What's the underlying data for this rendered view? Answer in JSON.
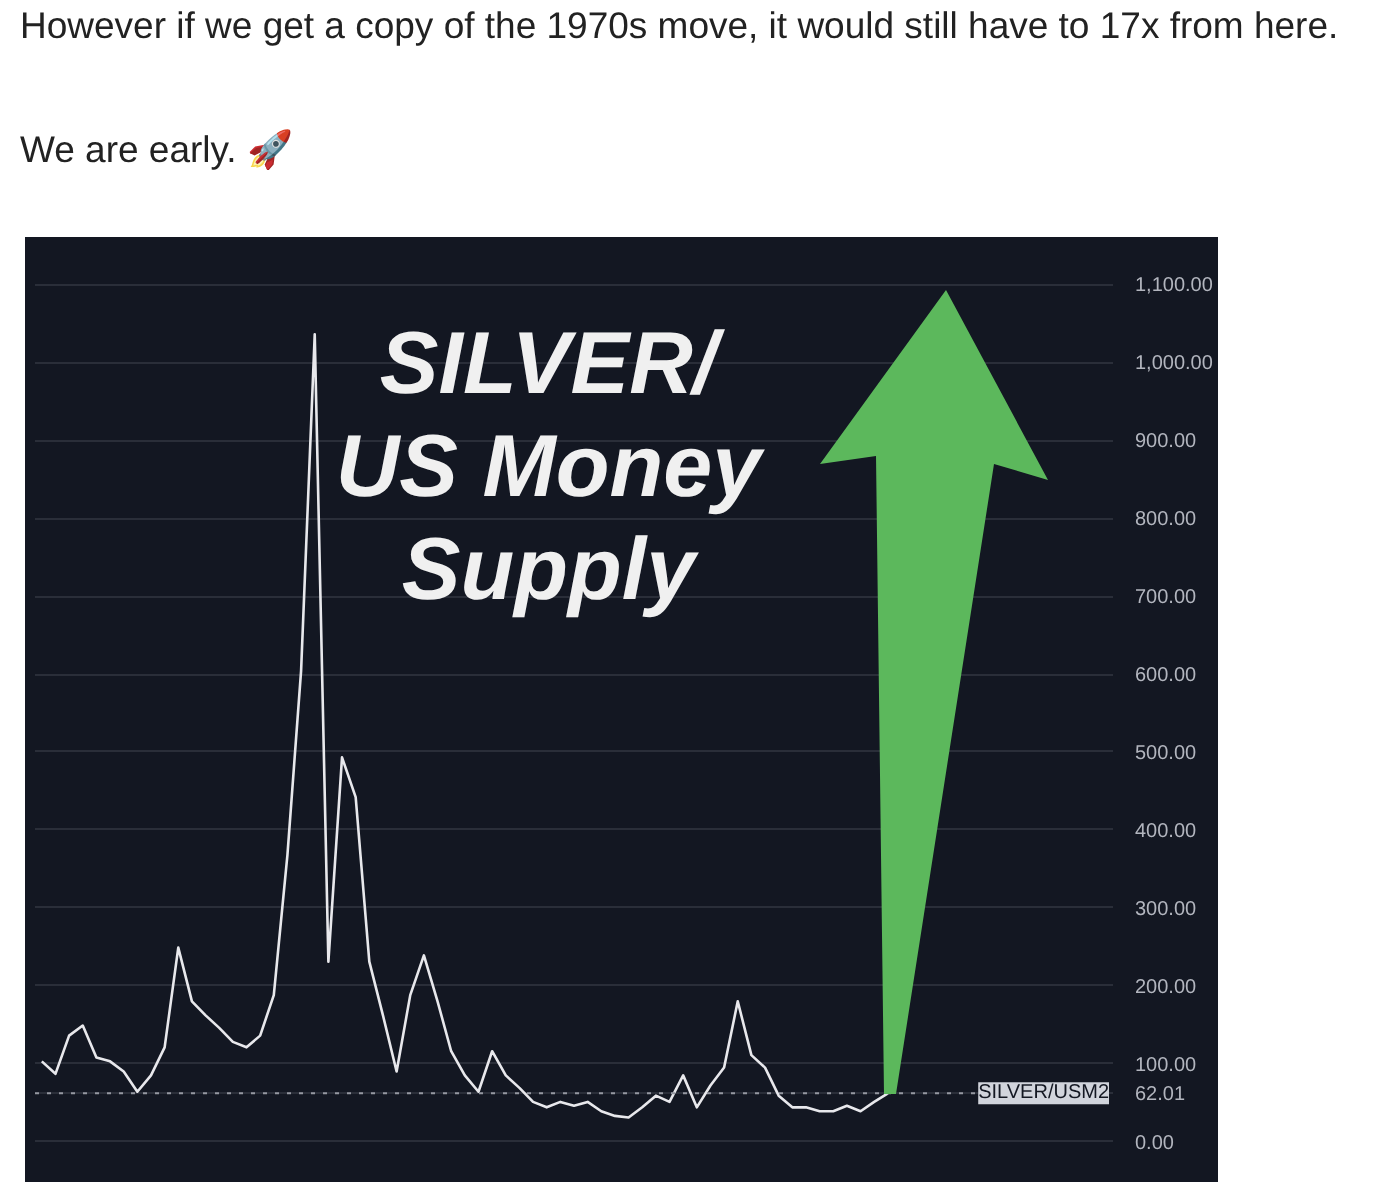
{
  "chart_data": {
    "type": "line",
    "title": "SILVER/\nUS Money\nSupply",
    "annotations": [
      "However if we get a copy of the 1970s move, it would still have to 17x from here.",
      "We are early. 🚀"
    ],
    "categories": [
      null,
      null,
      null,
      null,
      null,
      null,
      null,
      null,
      null,
      null,
      null,
      null,
      null,
      null,
      null,
      null,
      null,
      null,
      null,
      null,
      null,
      null,
      null,
      null,
      null,
      null,
      null,
      null,
      null,
      null,
      null,
      null,
      null,
      null,
      null,
      null,
      null,
      null,
      null,
      null,
      null,
      null,
      null,
      null,
      null,
      null,
      null,
      null,
      null,
      null,
      null,
      null,
      null,
      null,
      null,
      null,
      null,
      null,
      null,
      null,
      null,
      null,
      null,
      null,
      null,
      null,
      null,
      null,
      null,
      null,
      null,
      null,
      null,
      null,
      null,
      null,
      null,
      null,
      null
    ],
    "series": [
      {
        "color": "#e8e8ec",
        "values": [
          103,
          87,
          136,
          149,
          108,
          103,
          90,
          64,
          85,
          121,
          249,
          180,
          162,
          146,
          128,
          121,
          136,
          188,
          368,
          604,
          1036,
          231,
          493,
          442,
          231,
          162,
          90,
          188,
          239,
          180,
          116,
          85,
          64,
          116,
          85,
          69,
          51,
          44,
          51,
          46,
          51,
          39,
          33,
          31,
          44,
          59,
          51,
          85,
          44,
          72,
          95,
          180,
          111,
          95,
          59,
          44,
          44,
          39,
          39,
          46,
          39,
          51,
          62,
          null,
          null,
          null,
          null,
          null,
          null,
          null,
          null,
          null,
          null,
          null,
          null,
          null,
          null,
          null,
          null
        ]
      }
    ],
    "ylim": [
      -30,
      1130
    ],
    "yticks": [
      {
        "value": 0,
        "label": "0.00"
      },
      {
        "value": 62.01,
        "label": "62.01"
      },
      {
        "value": 100,
        "label": "100.00"
      },
      {
        "value": 200,
        "label": "200.00"
      },
      {
        "value": 300,
        "label": "300.00"
      },
      {
        "value": 400,
        "label": "400.00"
      },
      {
        "value": 500,
        "label": "500.00"
      },
      {
        "value": 600,
        "label": "600.00"
      },
      {
        "value": 700,
        "label": "700.00"
      },
      {
        "value": 800,
        "label": "800.00"
      },
      {
        "value": 900,
        "label": "900.00"
      },
      {
        "value": 1000,
        "label": "1,000.00"
      },
      {
        "value": 1100,
        "label": "1,100.00"
      }
    ],
    "ref_lines": [
      {
        "axis": "y",
        "value": 62.01,
        "label": "SILVER/USM2",
        "color": "#9598a1",
        "line_style": "dotted"
      }
    ],
    "grid": "y",
    "tick_labels": "y",
    "marker": "none",
    "line_style": "solid"
  }
}
